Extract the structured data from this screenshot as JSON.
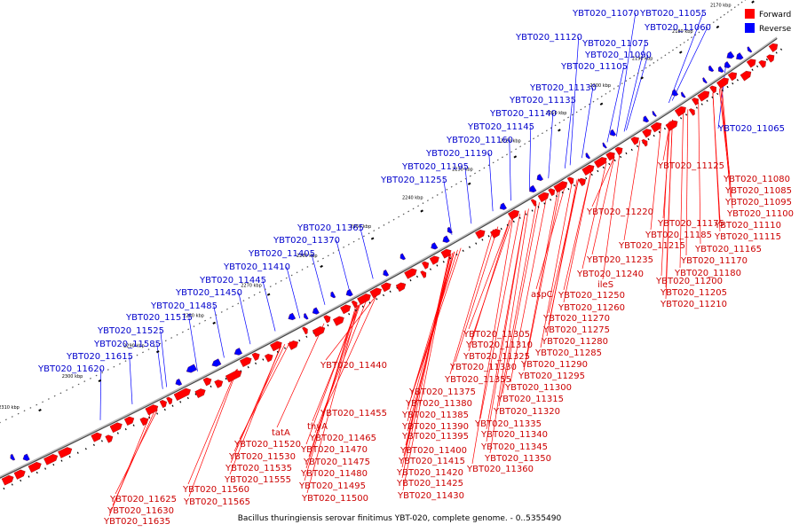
{
  "caption": "Bacillus thuringiensis serovar finitimus YBT-020, complete genome. - 0..5355490",
  "legend": [
    {
      "name": "Forward",
      "color": "#ff0000"
    },
    {
      "name": "Reverse",
      "color": "#0000ff"
    }
  ],
  "colors": {
    "forward": "#ff0000",
    "reverse": "#0000ff",
    "forward_label": "#cc0000",
    "reverse_label": "#0000cc",
    "backbone": "#777777"
  },
  "scale_ticks": [
    "2170 kbp",
    "2180 kbp",
    "2190 kbp",
    "2200 kbp",
    "2210 kbp",
    "2220 kbp",
    "2230 kbp",
    "2240 kbp",
    "2250 kbp",
    "2260 kbp",
    "2270 kbp",
    "2280 kbp",
    "2290 kbp",
    "2300 kbp",
    "2310 kbp"
  ],
  "reverse_labels": [
    "YBT020_11070",
    "YBT020_11055",
    "YBT020_11060",
    "YBT020_11120",
    "YBT020_11075",
    "YBT020_11090",
    "YBT020_11105",
    "YBT020_11130",
    "YBT020_11135",
    "YBT020_11140",
    "YBT020_11145",
    "YBT020_11160",
    "YBT020_11190",
    "YBT020_11195",
    "YBT020_11255",
    "YBT020_11065",
    "YBT020_11365",
    "YBT020_11370",
    "YBT020_11405",
    "YBT020_11410",
    "YBT020_11445",
    "YBT020_11450",
    "YBT020_11485",
    "YBT020_11515",
    "YBT020_11525",
    "YBT020_11585",
    "YBT020_11615",
    "YBT020_11620"
  ],
  "forward_labels": [
    "YBT020_11125",
    "YBT020_11080",
    "YBT020_11085",
    "YBT020_11095",
    "YBT020_11100",
    "YBT020_11220",
    "YBT020_11175",
    "YBT020_11110",
    "YBT020_11185",
    "YBT020_11115",
    "YBT020_11215",
    "YBT020_11165",
    "YBT020_11235",
    "YBT020_11170",
    "YBT020_11180",
    "YBT020_11240",
    "YBT020_11200",
    "ileS",
    "YBT020_11205",
    "YBT020_11250",
    "aspC",
    "YBT020_11210",
    "YBT020_11260",
    "YBT020_11270",
    "YBT020_11275",
    "YBT020_11305",
    "YBT020_11280",
    "YBT020_11310",
    "YBT020_11285",
    "YBT020_11325",
    "YBT020_11290",
    "YBT020_11330",
    "YBT020_11295",
    "YBT020_11440",
    "YBT020_11355",
    "YBT020_11300",
    "YBT020_11375",
    "YBT020_11315",
    "YBT020_11380",
    "YBT020_11385",
    "YBT020_11320",
    "YBT020_11455",
    "YBT020_11390",
    "YBT020_11335",
    "thyA",
    "tatA",
    "YBT020_11395",
    "YBT020_11340",
    "YBT020_11465",
    "YBT020_11400",
    "YBT020_11345",
    "YBT020_11520",
    "YBT020_11470",
    "YBT020_11350",
    "YBT020_11415",
    "YBT020_11530",
    "YBT020_11475",
    "YBT020_11420",
    "YBT020_11360",
    "YBT020_11535",
    "YBT020_11480",
    "YBT020_11425",
    "YBT020_11555",
    "YBT020_11495",
    "YBT020_11430",
    "YBT020_11560",
    "YBT020_11500",
    "YBT020_11565",
    "YBT020_11625",
    "YBT020_11630",
    "YBT020_11635"
  ]
}
